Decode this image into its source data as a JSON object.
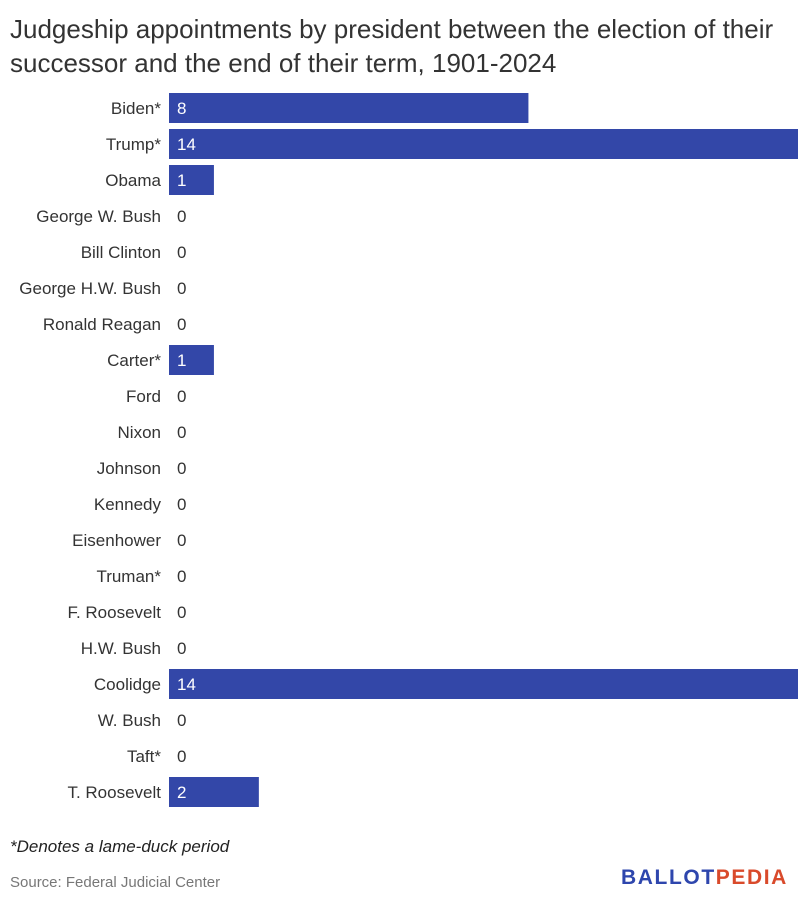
{
  "title": "Judgeship appointments by president between the election of their successor and the end of their term, 1901-2024",
  "footnote": "*Denotes a lame-duck period",
  "source": "Source: Federal Judicial Center",
  "logo": {
    "part1": "BALLOT",
    "part2": "PEDIA"
  },
  "colors": {
    "bar": "#3347a8",
    "bar_label": "#ffffff",
    "zero_label": "#333333",
    "logo_primary": "#2e46ad",
    "logo_accent": "#d94a2b"
  },
  "chart_data": {
    "type": "bar",
    "orientation": "horizontal",
    "categories": [
      "Biden*",
      "Trump*",
      "Obama",
      "George W. Bush",
      "Bill Clinton",
      "George H.W. Bush",
      "Ronald Reagan",
      "Carter*",
      "Ford",
      "Nixon",
      "Johnson",
      "Kennedy",
      "Eisenhower",
      "Truman*",
      "F. Roosevelt",
      "H.W. Bush",
      "Coolidge",
      "W. Bush",
      "Taft*",
      "T. Roosevelt"
    ],
    "values": [
      8,
      14,
      1,
      0,
      0,
      0,
      0,
      1,
      0,
      0,
      0,
      0,
      0,
      0,
      0,
      0,
      14,
      0,
      0,
      2
    ],
    "xlim": [
      0,
      14
    ],
    "grid": false,
    "legend": "none"
  }
}
